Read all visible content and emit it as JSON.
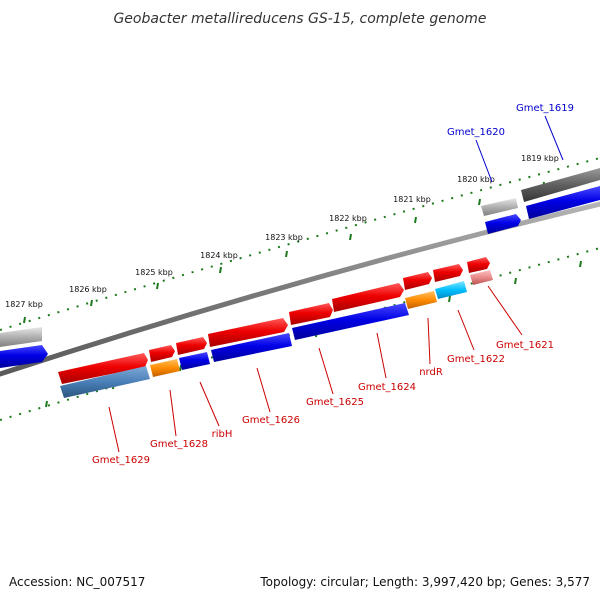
{
  "title": "Geobacter metallireducens GS-15, complete genome",
  "footer": {
    "accession": "Accession: NC_007517",
    "summary": "Topology: circular; Length: 3,997,420 bp; Genes: 3,577"
  },
  "ruler": {
    "labels": [
      "1819 kbp",
      "1820 kbp",
      "1821 kbp",
      "1822 kbp",
      "1823 kbp",
      "1824 kbp",
      "1825 kbp",
      "1826 kbp",
      "1827 kbp"
    ]
  },
  "gene_labels": {
    "upper_strand": [
      "Gmet_1619",
      "Gmet_1620"
    ],
    "lower_strand": [
      "Gmet_1621",
      "Gmet_1622",
      "nrdR",
      "Gmet_1624",
      "Gmet_1625",
      "Gmet_1626",
      "ribH",
      "Gmet_1628",
      "Gmet_1629"
    ]
  },
  "colors": {
    "backbone": "#7a7a7a",
    "tick": "#1e7a1e",
    "forward_gene": "#e00000",
    "cds": "#0000e0",
    "rna": "#ff8c00",
    "misc": "#00bfff",
    "pseudo": "#e98a8a",
    "partial_gene": "#b0b0b0",
    "partial_dark": "#606060",
    "lower_label": "#cc0000",
    "upper_label": "#0000cc"
  }
}
